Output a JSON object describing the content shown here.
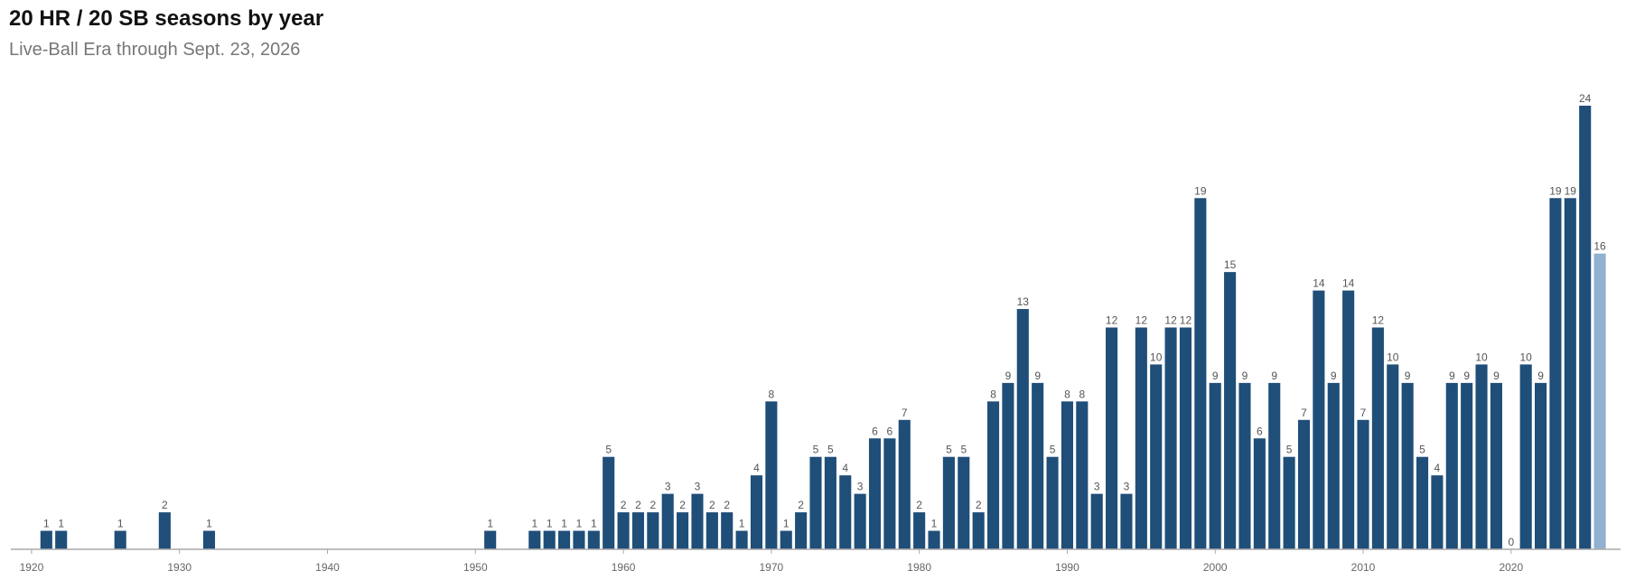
{
  "chart_data": {
    "type": "bar",
    "title": "20 HR / 20 SB seasons by year",
    "subtitle": "Live-Ball Era through Sept. 23, 2026",
    "x": [
      1921,
      1922,
      1926,
      1929,
      1932,
      1951,
      1954,
      1955,
      1956,
      1957,
      1958,
      1959,
      1960,
      1961,
      1962,
      1963,
      1964,
      1965,
      1966,
      1967,
      1968,
      1969,
      1970,
      1971,
      1972,
      1973,
      1974,
      1975,
      1976,
      1977,
      1978,
      1979,
      1980,
      1981,
      1982,
      1983,
      1984,
      1985,
      1986,
      1987,
      1988,
      1989,
      1990,
      1991,
      1992,
      1993,
      1994,
      1995,
      1996,
      1997,
      1998,
      1999,
      2000,
      2001,
      2002,
      2003,
      2004,
      2005,
      2006,
      2007,
      2008,
      2009,
      2010,
      2011,
      2012,
      2013,
      2014,
      2015,
      2016,
      2017,
      2018,
      2019,
      2020,
      2021,
      2022,
      2023,
      2024,
      2025,
      2026
    ],
    "values": [
      1,
      1,
      1,
      2,
      1,
      1,
      1,
      1,
      1,
      1,
      1,
      5,
      2,
      2,
      2,
      3,
      2,
      3,
      2,
      2,
      1,
      4,
      8,
      1,
      2,
      5,
      5,
      4,
      3,
      6,
      6,
      7,
      2,
      1,
      5,
      5,
      2,
      8,
      9,
      13,
      9,
      5,
      8,
      8,
      3,
      12,
      3,
      12,
      10,
      12,
      12,
      19,
      9,
      15,
      9,
      6,
      9,
      5,
      7,
      14,
      9,
      14,
      7,
      12,
      10,
      9,
      5,
      4,
      9,
      9,
      10,
      9,
      0,
      10,
      9,
      19,
      19,
      24,
      16
    ],
    "color": "#1f4e79",
    "last_bar_color": "#92b0d0",
    "xlim": [
      1918.6,
      2027.4
    ],
    "xticks": [
      1920,
      1930,
      1940,
      1950,
      1960,
      1970,
      1980,
      1990,
      2000,
      2010,
      2020
    ],
    "ylim": [
      0,
      24
    ],
    "grid": false
  }
}
